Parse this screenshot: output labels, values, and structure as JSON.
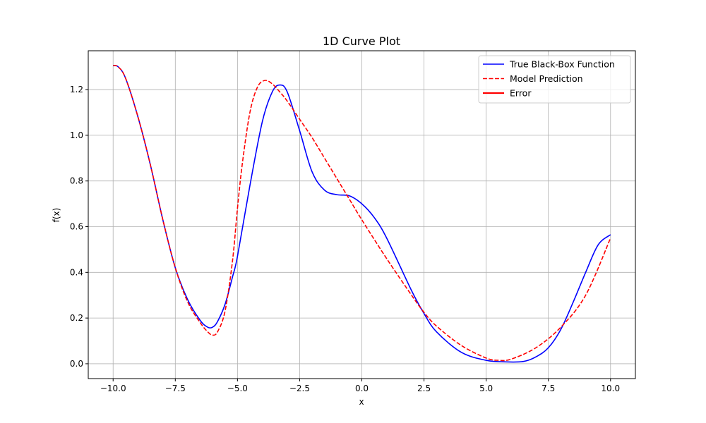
{
  "chart_data": {
    "type": "line",
    "title": "1D Curve Plot",
    "xlabel": "x",
    "ylabel": "f(x)",
    "xlim": [
      -11,
      11
    ],
    "ylim": [
      -0.065,
      1.37
    ],
    "grid": true,
    "legend_position": "top-right",
    "x_ticks": [
      -10,
      -7.5,
      -5,
      -2.5,
      0,
      2.5,
      5,
      7.5,
      10
    ],
    "x_tick_labels": [
      "−10.0",
      "−7.5",
      "−5.0",
      "−2.5",
      "0.0",
      "2.5",
      "5.0",
      "7.5",
      "10.0"
    ],
    "y_ticks": [
      0,
      0.2,
      0.4,
      0.6,
      0.8,
      1.0,
      1.2
    ],
    "y_tick_labels": [
      "0.0",
      "0.2",
      "0.4",
      "0.6",
      "0.8",
      "1.0",
      "1.2"
    ],
    "series": [
      {
        "name": "True Black-Box Function",
        "color": "#0000ff",
        "style": "solid",
        "x": [
          -10,
          -9.8,
          -9.5,
          -9,
          -8.5,
          -8,
          -7.5,
          -7,
          -6.5,
          -6.2,
          -6,
          -5.8,
          -5.5,
          -5.2,
          -5,
          -4.5,
          -4,
          -3.6,
          -3.3,
          -3,
          -2.5,
          -2,
          -1.5,
          -1,
          -0.5,
          0,
          0.5,
          1,
          2,
          2.5,
          3,
          4,
          5,
          5.8,
          6.5,
          7,
          7.5,
          8,
          8.5,
          9,
          9.5,
          10
        ],
        "y": [
          1.305,
          1.3,
          1.25,
          1.08,
          0.87,
          0.63,
          0.42,
          0.28,
          0.19,
          0.16,
          0.16,
          0.185,
          0.26,
          0.38,
          0.47,
          0.78,
          1.06,
          1.19,
          1.22,
          1.19,
          1.02,
          0.84,
          0.76,
          0.74,
          0.735,
          0.7,
          0.64,
          0.55,
          0.32,
          0.22,
          0.14,
          0.05,
          0.015,
          0.008,
          0.01,
          0.03,
          0.07,
          0.15,
          0.27,
          0.4,
          0.52,
          0.565
        ]
      },
      {
        "name": "Model Prediction",
        "color": "#ff0000",
        "style": "dashed",
        "x": [
          -10,
          -9.8,
          -9.5,
          -9,
          -8.5,
          -8,
          -7.5,
          -7,
          -6.5,
          -6.2,
          -6,
          -5.8,
          -5.5,
          -5.2,
          -5,
          -4.8,
          -4.5,
          -4.2,
          -3.9,
          -3.6,
          -3.3,
          -3,
          -2.5,
          -2,
          -1.5,
          -1,
          -0.5,
          0,
          1,
          2,
          2.5,
          3,
          4,
          5,
          5.5,
          6,
          7,
          8,
          9,
          10
        ],
        "y": [
          1.305,
          1.3,
          1.25,
          1.08,
          0.87,
          0.63,
          0.42,
          0.27,
          0.18,
          0.14,
          0.125,
          0.14,
          0.23,
          0.45,
          0.68,
          0.88,
          1.1,
          1.21,
          1.24,
          1.225,
          1.19,
          1.15,
          1.07,
          0.99,
          0.9,
          0.81,
          0.72,
          0.63,
          0.46,
          0.3,
          0.225,
          0.165,
          0.08,
          0.025,
          0.015,
          0.02,
          0.07,
          0.16,
          0.3,
          0.55
        ]
      },
      {
        "name": "Error",
        "color": "#ff0000",
        "style": "solid",
        "x": [],
        "y": []
      }
    ]
  }
}
